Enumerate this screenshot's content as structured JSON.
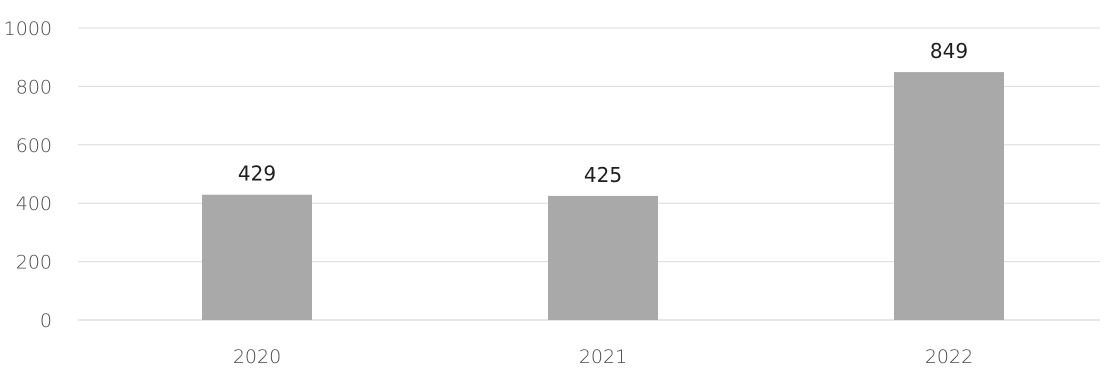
{
  "chart_data": {
    "type": "bar",
    "title": "",
    "xlabel": "",
    "ylabel": "",
    "categories": [
      "2020",
      "2021",
      "2022"
    ],
    "values": [
      429,
      425,
      849
    ],
    "data_labels": [
      "429",
      "425",
      "849"
    ],
    "ylim": [
      0,
      1000
    ],
    "yticks": [
      0,
      200,
      400,
      600,
      800,
      1000
    ],
    "ytick_labels": [
      "0",
      "200",
      "400",
      "600",
      "800",
      "1000"
    ],
    "grid": true,
    "legend": "none",
    "bar_color": "#a9a9a9",
    "grid_color": "#dcdcdc"
  }
}
